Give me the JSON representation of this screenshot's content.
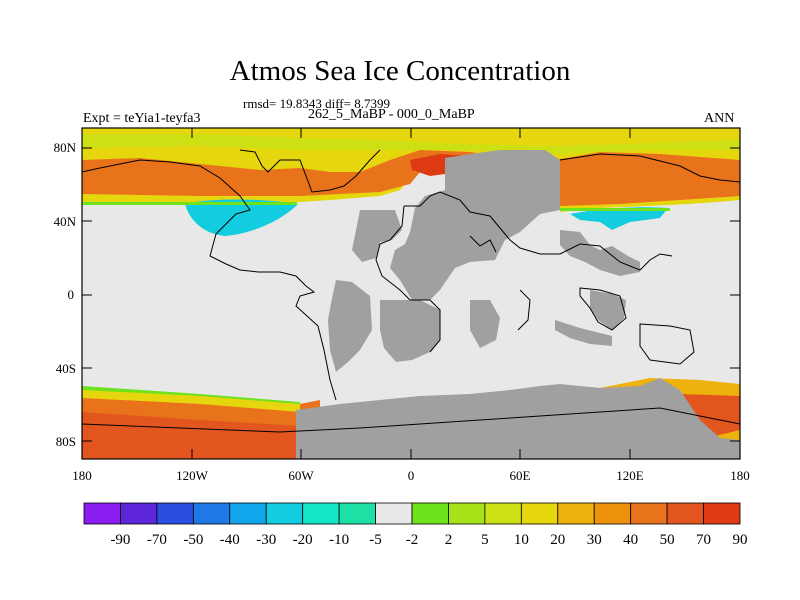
{
  "title": "Atmos Sea Ice Concentration",
  "stats": "rmsd= 19.8343 diff= 8.7399",
  "subtitle": "262_5_MaBP - 000_0_MaBP",
  "left_label": "Expt = teYia1-teyfa3",
  "right_label": "ANN",
  "lat_labels": [
    "80N",
    "40N",
    "0",
    "40S",
    "80S"
  ],
  "lon_labels": [
    "180",
    "120W",
    "60W",
    "0",
    "60E",
    "120E",
    "180"
  ],
  "colorbar": {
    "colors": [
      "#8a1cf0",
      "#5d26d8",
      "#2a4fe0",
      "#1e78e6",
      "#12a6ec",
      "#12cce0",
      "#14e6c8",
      "#1de0a4",
      "#e8e8e8",
      "#6ee21c",
      "#a6e218",
      "#cde014",
      "#e6d60e",
      "#eeb20c",
      "#ee920e",
      "#e8731a",
      "#e3551f",
      "#de3a14"
    ],
    "labels": [
      "-90",
      "-70",
      "-50",
      "-40",
      "-30",
      "-20",
      "-10",
      "-5",
      "-2",
      "2",
      "5",
      "10",
      "20",
      "30",
      "40",
      "50",
      "70",
      "90"
    ]
  },
  "colors": {
    "land": "#a0a0a0",
    "nochange": "#e8e8e8",
    "coast": "#000000"
  }
}
